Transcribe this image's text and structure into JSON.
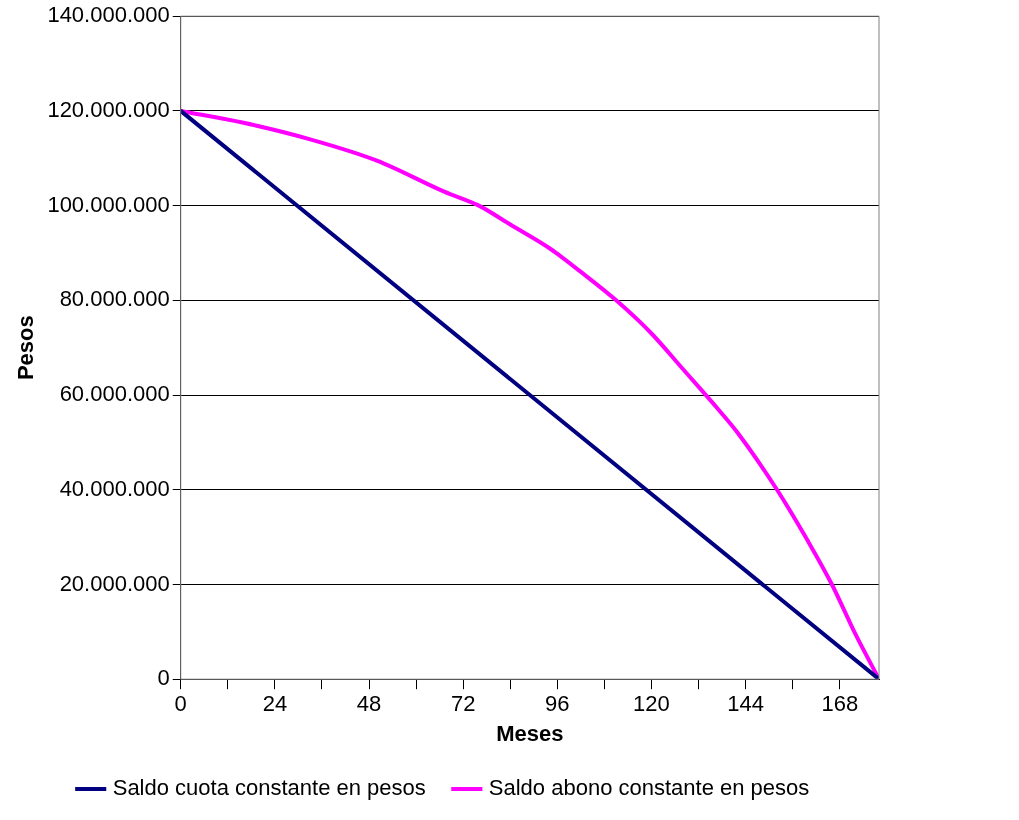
{
  "chart_data": {
    "type": "line",
    "xlabel": "Meses",
    "ylabel": "Pesos",
    "xlim": [
      0,
      178
    ],
    "xticks": [
      0,
      {
        "value": 12,
        "label": null
      },
      24,
      {
        "value": 36,
        "label": null
      },
      48,
      {
        "value": 60,
        "label": null
      },
      72,
      {
        "value": 84,
        "label": null
      },
      96,
      {
        "value": 108,
        "label": null
      },
      120,
      {
        "value": 132,
        "label": null
      },
      144,
      {
        "value": 156,
        "label": null
      },
      168
    ],
    "ylim": [
      0,
      140000000
    ],
    "yticks": [
      {
        "value": 0,
        "label": "0"
      },
      {
        "value": 20000000,
        "label": "20.000.000"
      },
      {
        "value": 40000000,
        "label": "40.000.000"
      },
      {
        "value": 60000000,
        "label": "60.000.000"
      },
      {
        "value": 80000000,
        "label": "80.000.000"
      },
      {
        "value": 100000000,
        "label": "100.000.000"
      },
      {
        "value": 120000000,
        "label": "120.000.000"
      },
      {
        "value": 140000000,
        "label": "140.000.000"
      }
    ],
    "grid": "y",
    "legend": "bottom",
    "marker": "none",
    "line_style": "solid",
    "series": [
      {
        "name": "Saldo cuota constante en pesos",
        "color": "#000080",
        "x": [
          0,
          178
        ],
        "values": [
          120000000,
          0
        ]
      },
      {
        "name": "Saldo abono constante en pesos",
        "color": "#ff00ff",
        "x": [
          0,
          16,
          33,
          50,
          67,
          76,
          84,
          94,
          102,
          111,
          120,
          128,
          137,
          142,
          152,
          160,
          166,
          172,
          178
        ],
        "values": [
          120000000,
          117500000,
          114000000,
          109500000,
          103000000,
          100000000,
          96000000,
          91000000,
          86000000,
          80000000,
          73000000,
          65500000,
          57000000,
          52000000,
          40000000,
          29000000,
          20000000,
          9500000,
          0
        ]
      }
    ]
  }
}
